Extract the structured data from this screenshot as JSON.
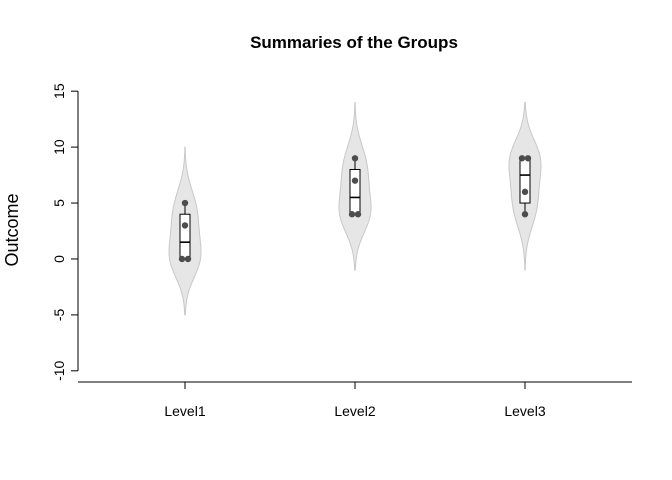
{
  "chart_data": {
    "type": "violin",
    "title": "Summaries of the Groups",
    "xlabel": "",
    "ylabel": "Outcome",
    "ylim": [
      -11,
      16
    ],
    "yticks": [
      -10,
      -5,
      0,
      5,
      10,
      15
    ],
    "categories": [
      "Level1",
      "Level2",
      "Level3"
    ],
    "groups": [
      {
        "name": "Level1",
        "points": [
          0,
          0,
          3,
          5
        ],
        "box": {
          "min": 0,
          "q1": 0,
          "median": 1.5,
          "q3": 4,
          "max": 5
        },
        "density_range": [
          -5,
          10
        ]
      },
      {
        "name": "Level2",
        "points": [
          4,
          4,
          7,
          9
        ],
        "box": {
          "min": 4,
          "q1": 4,
          "median": 5.5,
          "q3": 8,
          "max": 9
        },
        "density_range": [
          -1,
          14
        ]
      },
      {
        "name": "Level3",
        "points": [
          4,
          6,
          9,
          9
        ],
        "box": {
          "min": 4,
          "q1": 5,
          "median": 7.5,
          "q3": 9,
          "max": 9
        },
        "density_range": [
          -1,
          14
        ]
      }
    ],
    "colors": {
      "violin_fill": "#e6e6e6",
      "violin_stroke": "#c8c8c8",
      "point": "#4d4d4d",
      "box": "#000000"
    },
    "grid": false,
    "legend": "none"
  }
}
